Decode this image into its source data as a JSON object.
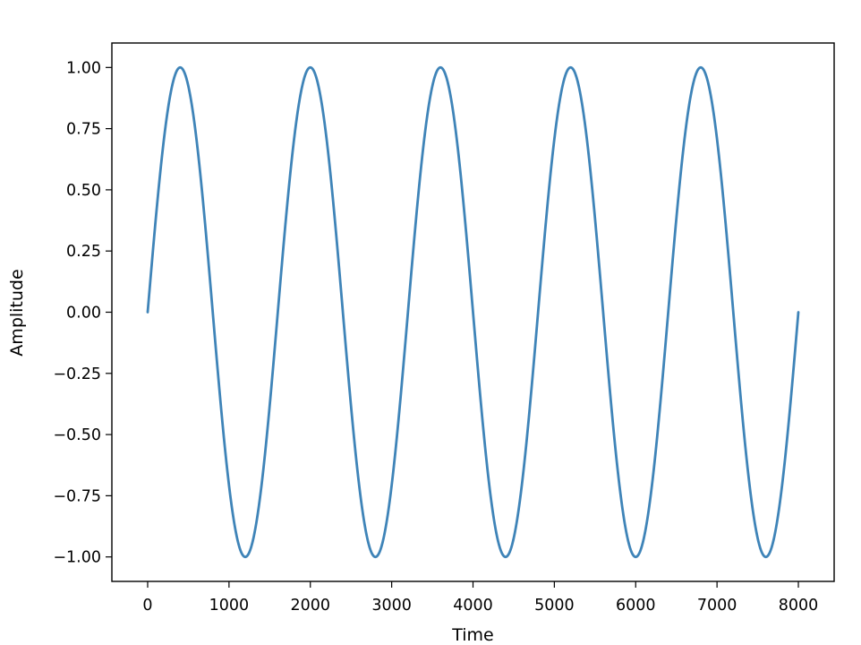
{
  "chart_data": {
    "type": "line",
    "title": "",
    "xlabel": "Time",
    "ylabel": "Amplitude",
    "xlim": [
      -440,
      8440
    ],
    "ylim": [
      -1.1,
      1.1
    ],
    "xticks": [
      0,
      1000,
      2000,
      3000,
      4000,
      5000,
      6000,
      7000,
      8000
    ],
    "xtick_labels": [
      "0",
      "1000",
      "2000",
      "3000",
      "4000",
      "5000",
      "6000",
      "7000",
      "8000"
    ],
    "yticks": [
      1.0,
      0.75,
      0.5,
      0.25,
      0.0,
      -0.25,
      -0.5,
      -0.75,
      -1.0
    ],
    "ytick_labels": [
      "1.00",
      "0.75",
      "0.50",
      "0.25",
      "0.00",
      "−0.25",
      "−0.50",
      "−0.75",
      "−1.00"
    ],
    "grid": false,
    "legend": false,
    "series": [
      {
        "color": "#3f84b8",
        "x": [
          0,
          100,
          200,
          300,
          400,
          500,
          600,
          700,
          800,
          900,
          1000,
          1100,
          1200,
          1300,
          1400,
          1500,
          1600,
          1700,
          1800,
          1900,
          2000,
          2100,
          2200,
          2300,
          2400,
          2500,
          2600,
          2700,
          2800,
          2900,
          3000,
          3100,
          3200,
          3300,
          3400,
          3500,
          3600,
          3700,
          3800,
          3900,
          4000,
          4100,
          4200,
          4300,
          4400,
          4500,
          4600,
          4700,
          4800,
          4900,
          5000,
          5100,
          5200,
          5300,
          5400,
          5500,
          5600,
          5700,
          5800,
          5900,
          6000,
          6100,
          6200,
          6300,
          6400,
          6500,
          6600,
          6700,
          6800,
          6900,
          7000,
          7100,
          7200,
          7300,
          7400,
          7500,
          7600,
          7700,
          7800,
          7900,
          8000
        ],
        "y": [
          0,
          0.3827,
          0.7071,
          0.9239,
          1,
          0.9239,
          0.7071,
          0.3827,
          0,
          -0.3827,
          -0.7071,
          -0.9239,
          -1,
          -0.9239,
          -0.7071,
          -0.3827,
          0,
          0.3827,
          0.7071,
          0.9239,
          1,
          0.9239,
          0.7071,
          0.3827,
          0,
          -0.3827,
          -0.7071,
          -0.9239,
          -1,
          -0.9239,
          -0.7071,
          -0.3827,
          0,
          0.3827,
          0.7071,
          0.9239,
          1,
          0.9239,
          0.7071,
          0.3827,
          0,
          -0.3827,
          -0.7071,
          -0.9239,
          -1,
          -0.9239,
          -0.7071,
          -0.3827,
          0,
          0.3827,
          0.7071,
          0.9239,
          1,
          0.9239,
          0.7071,
          0.3827,
          0,
          -0.3827,
          -0.7071,
          -0.9239,
          -1,
          -0.9239,
          -0.7071,
          -0.3827,
          0,
          0.3827,
          0.7071,
          0.9239,
          1,
          0.9239,
          0.7071,
          0.3827,
          0,
          -0.3827,
          -0.7071,
          -0.9239,
          -1,
          -0.9239,
          -0.7071,
          -0.3827,
          0
        ]
      }
    ]
  }
}
